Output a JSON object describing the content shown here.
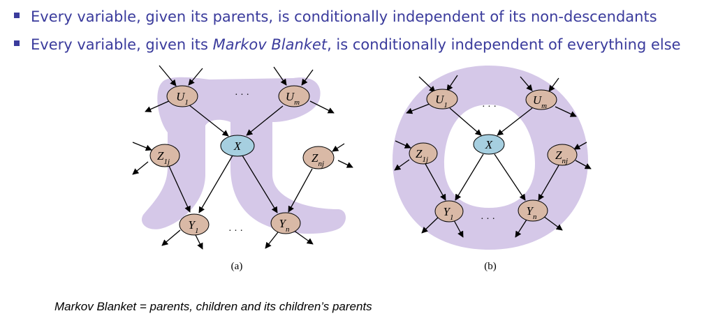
{
  "bullets": [
    {
      "pre": "Every variable, given its parents, is conditionally independent of its non-descendants",
      "emph": "",
      "post": ""
    },
    {
      "pre": "Every variable, given its ",
      "emph": "Markov Blanket",
      "post": ", is conditionally independent of everything else"
    }
  ],
  "panels": [
    {
      "label": "(a)",
      "dots": [
        "· · ·",
        "· · ·"
      ],
      "nodes": {
        "u1": {
          "base": "U",
          "sub": "1"
        },
        "um": {
          "base": "U",
          "sub": "m"
        },
        "x": {
          "base": "X",
          "sub": ""
        },
        "z1j": {
          "base": "Z",
          "sub": "1j"
        },
        "znj": {
          "base": "Z",
          "sub": "nj"
        },
        "y1": {
          "base": "Y",
          "sub": "1"
        },
        "yn": {
          "base": "Y",
          "sub": "n"
        }
      }
    },
    {
      "label": "(b)",
      "dots": [
        "· · ·",
        "· · ·"
      ],
      "nodes": {
        "u1": {
          "base": "U",
          "sub": "1"
        },
        "um": {
          "base": "U",
          "sub": "m"
        },
        "x": {
          "base": "X",
          "sub": ""
        },
        "z1j": {
          "base": "Z",
          "sub": "1j"
        },
        "znj": {
          "base": "Z",
          "sub": "nj"
        },
        "y1": {
          "base": "Y",
          "sub": "1"
        },
        "yn": {
          "base": "Y",
          "sub": "n"
        }
      }
    }
  ],
  "caption": "Markov Blanket = parents, children and its children’s parents",
  "colors": {
    "text": "#3a3b9c",
    "node_fill": "#d9b9a6",
    "x_fill": "#a6cfe0",
    "blanket": "#d5c8e8"
  }
}
